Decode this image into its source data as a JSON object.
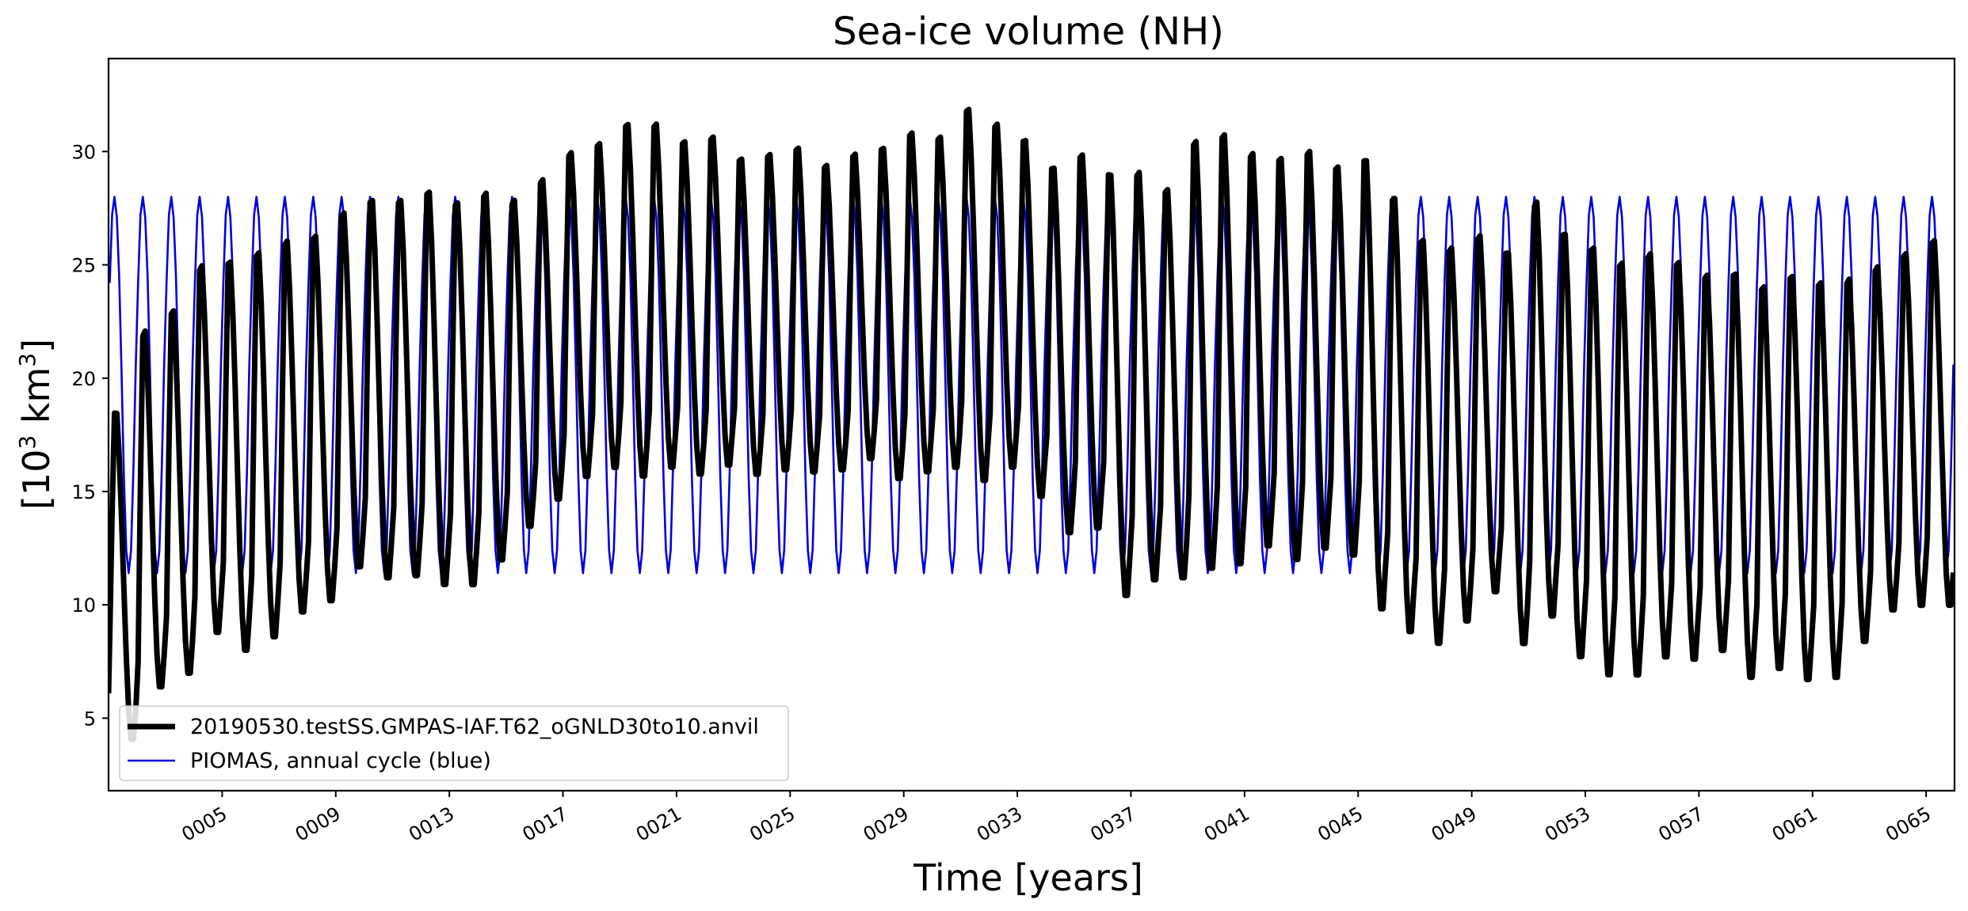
{
  "chart_data": {
    "type": "line",
    "title": "Sea-ice volume (NH)",
    "xlabel": "Time [years]",
    "ylabel": "[10³ km³]",
    "ylabel_base": "[10",
    "ylabel_exp1": "3",
    "ylabel_mid": " km",
    "ylabel_exp2": "3",
    "ylabel_end": "]",
    "xlim": [
      1.0,
      66.0
    ],
    "ylim": [
      1.8,
      34.1
    ],
    "grid": false,
    "legend_position": "lower-left",
    "x_ticks": [
      5,
      9,
      13,
      17,
      21,
      25,
      29,
      33,
      37,
      41,
      45,
      49,
      53,
      57,
      61,
      65
    ],
    "x_tick_labels": [
      "0005",
      "0009",
      "0013",
      "0017",
      "0021",
      "0025",
      "0029",
      "0033",
      "0037",
      "0041",
      "0045",
      "0049",
      "0053",
      "0057",
      "0061",
      "0065"
    ],
    "y_ticks": [
      5,
      10,
      15,
      20,
      25,
      30
    ],
    "y_tick_labels": [
      "5",
      "10",
      "15",
      "20",
      "25",
      "30"
    ],
    "series": [
      {
        "name": "20190530.testSS.GMPAS-IAF.T62_oGNLD30to10.anvil",
        "color": "#000000",
        "style": "thick",
        "data_resolution": "monthly",
        "start_year": 1,
        "annual_max": [
          19.1,
          22.8,
          23.7,
          25.7,
          25.9,
          26.3,
          26.8,
          27.0,
          28.0,
          28.6,
          28.6,
          29.0,
          28.5,
          28.9,
          28.5,
          29.4,
          30.6,
          31.0,
          31.9,
          31.9,
          31.1,
          31.3,
          30.3,
          30.5,
          30.8,
          30.0,
          30.5,
          30.8,
          31.5,
          31.3,
          32.6,
          31.9,
          31.2,
          30.0,
          30.6,
          29.8,
          29.9,
          29.1,
          31.3,
          31.6,
          30.7,
          30.5,
          30.8,
          30.1,
          30.5,
          28.8,
          26.9,
          26.5,
          27.0,
          26.3,
          28.6,
          27.2,
          26.6,
          25.9,
          26.3,
          25.9,
          25.3,
          25.4,
          24.8,
          25.3,
          25.0,
          25.1,
          25.6,
          26.2,
          26.8
        ],
        "annual_min": [
          6.1,
          3.9,
          6.2,
          6.8,
          8.6,
          7.8,
          8.4,
          9.5,
          10.0,
          11.5,
          11.0,
          11.1,
          10.7,
          10.7,
          11.8,
          13.3,
          14.5,
          15.5,
          15.9,
          15.5,
          15.9,
          15.6,
          16.0,
          15.6,
          15.8,
          15.7,
          15.8,
          16.3,
          15.4,
          15.7,
          15.9,
          15.3,
          15.9,
          14.6,
          13.0,
          13.2,
          10.2,
          10.9,
          11.0,
          11.4,
          11.6,
          12.4,
          11.8,
          12.3,
          12.0,
          9.6,
          8.6,
          8.1,
          9.1,
          10.4,
          8.1,
          9.3,
          7.5,
          6.7,
          6.7,
          7.5,
          7.4,
          7.8,
          6.6,
          7.0,
          6.5,
          6.6,
          8.2,
          9.6,
          9.8
        ]
      },
      {
        "name": "PIOMAS, annual cycle (blue)",
        "color": "#0000dd",
        "style": "thin",
        "data_resolution": "monthly",
        "annual_cycle": [
          24.2,
          27.2,
          28.0,
          27.1,
          24.5,
          20.3,
          15.6,
          12.4,
          11.4,
          12.4,
          16.0,
          20.6
        ]
      }
    ]
  }
}
